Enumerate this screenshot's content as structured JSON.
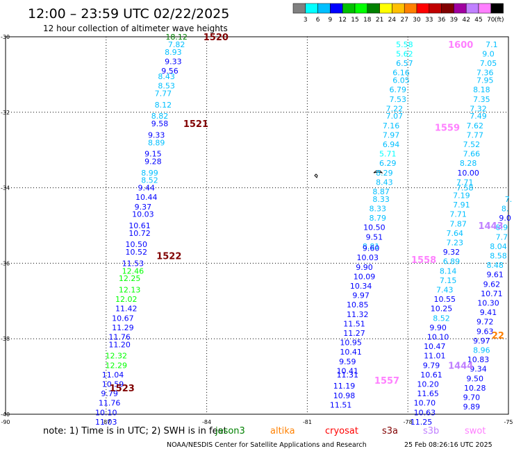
{
  "header": {
    "title": "12:00 – 23:59 UTC 02/22/2025",
    "subtitle": "12 hour collection of altimeter wave heights",
    "unit": "(ft)"
  },
  "legend_scale": {
    "labels": [
      "3",
      "6",
      "9",
      "12",
      "15",
      "18",
      "21",
      "24",
      "27",
      "30",
      "33",
      "36",
      "39",
      "42",
      "45",
      "70"
    ],
    "colors": [
      "#808080",
      "#00ffff",
      "#00bfff",
      "#0000ff",
      "#00c000",
      "#00ff00",
      "#008000",
      "#ffff00",
      "#ffc000",
      "#ff8000",
      "#ff0000",
      "#c00000",
      "#800000",
      "#a000a0",
      "#c080ff",
      "#ff80ff",
      "#000000"
    ]
  },
  "footer": {
    "note": "note:  1) Time is in UTC; 2) SWH is in feet",
    "satellites": [
      {
        "name": "jason3",
        "color": "#008000"
      },
      {
        "name": "altika",
        "color": "#ff8000"
      },
      {
        "name": "cryosat",
        "color": "#ff0000"
      },
      {
        "name": "s3a",
        "color": "#800000"
      },
      {
        "name": "s3b",
        "color": "#c080ff"
      },
      {
        "name": "swot",
        "color": "#ff80ff"
      }
    ],
    "credit": "NOAA/NESDIS Center for Satellite Applications and Research",
    "timestamp": "25 Feb 08:26:16 UTC 2025"
  },
  "chart_data": {
    "type": "scatter",
    "title": "12:00 – 23:59 UTC 02/22/2025",
    "subtitle": "12 hour collection of altimeter wave heights",
    "xlim": [
      -90,
      -75
    ],
    "ylim": [
      -40,
      -30
    ],
    "x_ticks": [
      "-90",
      "-87",
      "-84",
      "-81",
      "-78",
      "-75"
    ],
    "y_ticks": [
      "-30",
      "-32",
      "-34",
      "-36",
      "-38",
      "-40"
    ],
    "grid": true,
    "tracks": [
      {
        "time": "1520",
        "lon": -84.1,
        "lat": -30.0,
        "color": "#800000"
      },
      {
        "time": "1521",
        "lon": -84.7,
        "lat": -32.3,
        "color": "#800000"
      },
      {
        "time": "1522",
        "lon": -85.5,
        "lat": -35.8,
        "color": "#800000"
      },
      {
        "time": "1523",
        "lon": -86.9,
        "lat": -39.3,
        "color": "#800000"
      },
      {
        "time": "1600",
        "lon": -76.8,
        "lat": -30.2,
        "color": "#ff80ff"
      },
      {
        "time": "1559",
        "lon": -77.2,
        "lat": -32.4,
        "color": "#ff80ff"
      },
      {
        "time": "1558",
        "lon": -77.9,
        "lat": -35.9,
        "color": "#ff80ff"
      },
      {
        "time": "1557",
        "lon": -79.0,
        "lat": -39.1,
        "color": "#ff80ff"
      },
      {
        "time": "1443",
        "lon": -75.9,
        "lat": -35.0,
        "color": "#c080ff"
      },
      {
        "time": "1444",
        "lon": -76.8,
        "lat": -38.7,
        "color": "#c080ff"
      },
      {
        "time": "22",
        "lon": -75.5,
        "lat": -37.9,
        "color": "#ff8000"
      }
    ],
    "points": [
      {
        "lon": -84.9,
        "lat": -30.0,
        "v": "18.12",
        "c": "#008000"
      },
      {
        "lon": -84.9,
        "lat": -30.2,
        "v": "7.82",
        "c": "#00bfff"
      },
      {
        "lon": -85.0,
        "lat": -30.4,
        "v": "8.93",
        "c": "#00bfff"
      },
      {
        "lon": -85.0,
        "lat": -30.65,
        "v": "9.33",
        "c": "#0000ff"
      },
      {
        "lon": -85.1,
        "lat": -30.9,
        "v": "9.56",
        "c": "#0000ff"
      },
      {
        "lon": -85.2,
        "lat": -31.05,
        "v": "8.43",
        "c": "#00bfff"
      },
      {
        "lon": -85.2,
        "lat": -31.3,
        "v": "8.53",
        "c": "#00bfff"
      },
      {
        "lon": -85.3,
        "lat": -31.5,
        "v": "7.77",
        "c": "#00bfff"
      },
      {
        "lon": -85.3,
        "lat": -31.8,
        "v": "8.12",
        "c": "#00bfff"
      },
      {
        "lon": -85.4,
        "lat": -32.1,
        "v": "8.82",
        "c": "#00bfff"
      },
      {
        "lon": -85.4,
        "lat": -32.3,
        "v": "9.58",
        "c": "#0000ff"
      },
      {
        "lon": -85.5,
        "lat": -32.6,
        "v": "9.33",
        "c": "#0000ff"
      },
      {
        "lon": -85.5,
        "lat": -32.8,
        "v": "8.89",
        "c": "#00bfff"
      },
      {
        "lon": -85.6,
        "lat": -33.1,
        "v": "9.15",
        "c": "#0000ff"
      },
      {
        "lon": -85.6,
        "lat": -33.3,
        "v": "9.28",
        "c": "#0000ff"
      },
      {
        "lon": -85.7,
        "lat": -33.6,
        "v": "8.99",
        "c": "#00bfff"
      },
      {
        "lon": -85.7,
        "lat": -33.8,
        "v": "8.52",
        "c": "#00bfff"
      },
      {
        "lon": -85.8,
        "lat": -34.0,
        "v": "9.44",
        "c": "#0000ff"
      },
      {
        "lon": -85.8,
        "lat": -34.25,
        "v": "10.44",
        "c": "#0000ff"
      },
      {
        "lon": -85.9,
        "lat": -34.5,
        "v": "9.37",
        "c": "#0000ff"
      },
      {
        "lon": -85.9,
        "lat": -34.7,
        "v": "10.03",
        "c": "#0000ff"
      },
      {
        "lon": -86.0,
        "lat": -35.0,
        "v": "10.61",
        "c": "#0000ff"
      },
      {
        "lon": -86.0,
        "lat": -35.2,
        "v": "10.72",
        "c": "#0000ff"
      },
      {
        "lon": -86.1,
        "lat": -35.5,
        "v": "10.50",
        "c": "#0000ff"
      },
      {
        "lon": -86.1,
        "lat": -35.7,
        "v": "10.52",
        "c": "#0000ff"
      },
      {
        "lon": -86.2,
        "lat": -36.0,
        "v": "11.53",
        "c": "#0000ff"
      },
      {
        "lon": -86.2,
        "lat": -36.2,
        "v": "12.46",
        "c": "#00ff00"
      },
      {
        "lon": -86.3,
        "lat": -36.4,
        "v": "12.25",
        "c": "#00ff00"
      },
      {
        "lon": -86.3,
        "lat": -36.7,
        "v": "12.13",
        "c": "#00ff00"
      },
      {
        "lon": -86.4,
        "lat": -36.95,
        "v": "12.02",
        "c": "#00ff00"
      },
      {
        "lon": -86.4,
        "lat": -37.2,
        "v": "11.42",
        "c": "#0000ff"
      },
      {
        "lon": -86.5,
        "lat": -37.45,
        "v": "10.67",
        "c": "#0000ff"
      },
      {
        "lon": -86.5,
        "lat": -37.7,
        "v": "11.29",
        "c": "#0000ff"
      },
      {
        "lon": -86.6,
        "lat": -37.95,
        "v": "11.76",
        "c": "#0000ff"
      },
      {
        "lon": -86.6,
        "lat": -38.15,
        "v": "11.20",
        "c": "#0000ff"
      },
      {
        "lon": -86.7,
        "lat": -38.45,
        "v": "12.32",
        "c": "#00ff00"
      },
      {
        "lon": -86.7,
        "lat": -38.7,
        "v": "12.29",
        "c": "#00ff00"
      },
      {
        "lon": -86.8,
        "lat": -38.95,
        "v": "11.04",
        "c": "#0000ff"
      },
      {
        "lon": -86.8,
        "lat": -39.2,
        "v": "10.59",
        "c": "#0000ff"
      },
      {
        "lon": -86.9,
        "lat": -39.45,
        "v": "9.79",
        "c": "#0000ff"
      },
      {
        "lon": -86.9,
        "lat": -39.7,
        "v": "11.76",
        "c": "#0000ff"
      },
      {
        "lon": -87.0,
        "lat": -39.95,
        "v": "10.10",
        "c": "#0000ff"
      },
      {
        "lon": -87.0,
        "lat": -40.2,
        "v": "11.03",
        "c": "#0000ff"
      },
      {
        "lon": -78.1,
        "lat": -30.2,
        "v": "5.58",
        "c": "#00ffff"
      },
      {
        "lon": -78.1,
        "lat": -30.45,
        "v": "5.62",
        "c": "#00ffff"
      },
      {
        "lon": -78.1,
        "lat": -30.7,
        "v": "6.57",
        "c": "#00bfff"
      },
      {
        "lon": -78.2,
        "lat": -30.95,
        "v": "6.16",
        "c": "#00bfff"
      },
      {
        "lon": -78.2,
        "lat": -31.15,
        "v": "6.05",
        "c": "#00bfff"
      },
      {
        "lon": -78.3,
        "lat": -31.4,
        "v": "6.79",
        "c": "#00bfff"
      },
      {
        "lon": -78.3,
        "lat": -31.65,
        "v": "7.53",
        "c": "#00bfff"
      },
      {
        "lon": -78.4,
        "lat": -31.9,
        "v": "7.22",
        "c": "#00bfff"
      },
      {
        "lon": -78.4,
        "lat": -32.1,
        "v": "7.07",
        "c": "#00bfff"
      },
      {
        "lon": -78.5,
        "lat": -32.35,
        "v": "7.16",
        "c": "#00bfff"
      },
      {
        "lon": -78.5,
        "lat": -32.6,
        "v": "7.97",
        "c": "#00bfff"
      },
      {
        "lon": -78.5,
        "lat": -32.85,
        "v": "6.94",
        "c": "#00bfff"
      },
      {
        "lon": -78.6,
        "lat": -33.1,
        "v": "5.71",
        "c": "#00ffff"
      },
      {
        "lon": -78.6,
        "lat": -33.35,
        "v": "6.29",
        "c": "#00bfff"
      },
      {
        "lon": -78.7,
        "lat": -33.6,
        "v": "8.29",
        "c": "#00bfff"
      },
      {
        "lon": -78.7,
        "lat": -33.85,
        "v": "8.43",
        "c": "#00bfff"
      },
      {
        "lon": -78.8,
        "lat": -34.1,
        "v": "8.87",
        "c": "#00bfff"
      },
      {
        "lon": -78.8,
        "lat": -34.3,
        "v": "8.33",
        "c": "#00bfff"
      },
      {
        "lon": -78.9,
        "lat": -34.55,
        "v": "8.33",
        "c": "#00bfff"
      },
      {
        "lon": -78.9,
        "lat": -34.8,
        "v": "8.79",
        "c": "#00bfff"
      },
      {
        "lon": -79.0,
        "lat": -35.05,
        "v": "10.50",
        "c": "#0000ff"
      },
      {
        "lon": -79.0,
        "lat": -35.3,
        "v": "9.51",
        "c": "#0000ff"
      },
      {
        "lon": -79.1,
        "lat": -35.55,
        "v": "8.81",
        "c": "#00bfff"
      },
      {
        "lon": -79.1,
        "lat": -35.6,
        "v": "9.60",
        "c": "#0000ff"
      },
      {
        "lon": -79.2,
        "lat": -35.85,
        "v": "10.03",
        "c": "#0000ff"
      },
      {
        "lon": -79.3,
        "lat": -36.1,
        "v": "9.90",
        "c": "#0000ff"
      },
      {
        "lon": -79.3,
        "lat": -36.35,
        "v": "10.09",
        "c": "#0000ff"
      },
      {
        "lon": -79.4,
        "lat": -36.6,
        "v": "10.34",
        "c": "#0000ff"
      },
      {
        "lon": -79.4,
        "lat": -36.85,
        "v": "9.97",
        "c": "#0000ff"
      },
      {
        "lon": -79.5,
        "lat": -37.1,
        "v": "10.85",
        "c": "#0000ff"
      },
      {
        "lon": -79.5,
        "lat": -37.35,
        "v": "11.32",
        "c": "#0000ff"
      },
      {
        "lon": -79.6,
        "lat": -37.6,
        "v": "11.51",
        "c": "#0000ff"
      },
      {
        "lon": -79.6,
        "lat": -37.85,
        "v": "11.27",
        "c": "#0000ff"
      },
      {
        "lon": -79.7,
        "lat": -38.1,
        "v": "10.95",
        "c": "#0000ff"
      },
      {
        "lon": -79.7,
        "lat": -38.35,
        "v": "10.41",
        "c": "#0000ff"
      },
      {
        "lon": -79.8,
        "lat": -38.6,
        "v": "9.59",
        "c": "#0000ff"
      },
      {
        "lon": -79.8,
        "lat": -38.85,
        "v": "10.41",
        "c": "#0000ff"
      },
      {
        "lon": -79.8,
        "lat": -38.95,
        "v": "11.31",
        "c": "#0000ff"
      },
      {
        "lon": -79.9,
        "lat": -39.25,
        "v": "11.19",
        "c": "#0000ff"
      },
      {
        "lon": -79.9,
        "lat": -39.5,
        "v": "10.98",
        "c": "#0000ff"
      },
      {
        "lon": -80.0,
        "lat": -39.75,
        "v": "11.51",
        "c": "#0000ff"
      },
      {
        "lon": -75.5,
        "lat": -30.2,
        "v": "7.1",
        "c": "#00bfff"
      },
      {
        "lon": -75.6,
        "lat": -30.45,
        "v": "9.0",
        "c": "#00bfff"
      },
      {
        "lon": -75.6,
        "lat": -30.7,
        "v": "7.05",
        "c": "#00bfff"
      },
      {
        "lon": -75.7,
        "lat": -30.95,
        "v": "7.36",
        "c": "#00bfff"
      },
      {
        "lon": -75.7,
        "lat": -31.15,
        "v": "7.95",
        "c": "#00bfff"
      },
      {
        "lon": -75.8,
        "lat": -31.4,
        "v": "8.18",
        "c": "#00bfff"
      },
      {
        "lon": -75.8,
        "lat": -31.65,
        "v": "7.35",
        "c": "#00bfff"
      },
      {
        "lon": -75.9,
        "lat": -31.9,
        "v": "7.32",
        "c": "#00bfff"
      },
      {
        "lon": -75.9,
        "lat": -32.1,
        "v": "7.49",
        "c": "#00bfff"
      },
      {
        "lon": -76.0,
        "lat": -32.35,
        "v": "7.62",
        "c": "#00bfff"
      },
      {
        "lon": -76.0,
        "lat": -32.6,
        "v": "7.77",
        "c": "#00bfff"
      },
      {
        "lon": -76.1,
        "lat": -32.85,
        "v": "7.52",
        "c": "#00bfff"
      },
      {
        "lon": -76.1,
        "lat": -33.1,
        "v": "7.66",
        "c": "#00bfff"
      },
      {
        "lon": -76.2,
        "lat": -33.35,
        "v": "8.28",
        "c": "#00bfff"
      },
      {
        "lon": -76.2,
        "lat": -33.6,
        "v": "10.00",
        "c": "#0000ff"
      },
      {
        "lon": -76.3,
        "lat": -33.85,
        "v": "7.71",
        "c": "#00bfff"
      },
      {
        "lon": -76.3,
        "lat": -34.0,
        "v": "7.58",
        "c": "#00bfff"
      },
      {
        "lon": -76.4,
        "lat": -34.2,
        "v": "7.19",
        "c": "#00bfff"
      },
      {
        "lon": -76.4,
        "lat": -34.45,
        "v": "7.91",
        "c": "#00bfff"
      },
      {
        "lon": -76.5,
        "lat": -34.7,
        "v": "7.71",
        "c": "#00bfff"
      },
      {
        "lon": -76.5,
        "lat": -34.95,
        "v": "7.87",
        "c": "#00bfff"
      },
      {
        "lon": -76.6,
        "lat": -35.2,
        "v": "7.64",
        "c": "#00bfff"
      },
      {
        "lon": -76.6,
        "lat": -35.45,
        "v": "7.23",
        "c": "#00bfff"
      },
      {
        "lon": -76.7,
        "lat": -35.7,
        "v": "9.32",
        "c": "#0000ff"
      },
      {
        "lon": -76.7,
        "lat": -35.95,
        "v": "6.89",
        "c": "#00bfff"
      },
      {
        "lon": -76.8,
        "lat": -36.2,
        "v": "8.14",
        "c": "#00bfff"
      },
      {
        "lon": -76.8,
        "lat": -36.45,
        "v": "7.15",
        "c": "#00bfff"
      },
      {
        "lon": -76.9,
        "lat": -36.7,
        "v": "7.43",
        "c": "#00bfff"
      },
      {
        "lon": -76.9,
        "lat": -36.95,
        "v": "10.55",
        "c": "#0000ff"
      },
      {
        "lon": -77.0,
        "lat": -37.2,
        "v": "10.25",
        "c": "#0000ff"
      },
      {
        "lon": -77.0,
        "lat": -37.45,
        "v": "8.52",
        "c": "#00bfff"
      },
      {
        "lon": -77.1,
        "lat": -37.7,
        "v": "9.90",
        "c": "#0000ff"
      },
      {
        "lon": -77.1,
        "lat": -37.95,
        "v": "10.10",
        "c": "#0000ff"
      },
      {
        "lon": -77.2,
        "lat": -38.2,
        "v": "10.47",
        "c": "#0000ff"
      },
      {
        "lon": -77.2,
        "lat": -38.45,
        "v": "11.01",
        "c": "#0000ff"
      },
      {
        "lon": -77.3,
        "lat": -38.7,
        "v": "9.79",
        "c": "#0000ff"
      },
      {
        "lon": -77.3,
        "lat": -38.95,
        "v": "10.61",
        "c": "#0000ff"
      },
      {
        "lon": -77.4,
        "lat": -39.2,
        "v": "10.20",
        "c": "#0000ff"
      },
      {
        "lon": -77.4,
        "lat": -39.45,
        "v": "11.65",
        "c": "#0000ff"
      },
      {
        "lon": -77.5,
        "lat": -39.7,
        "v": "10.70",
        "c": "#0000ff"
      },
      {
        "lon": -77.5,
        "lat": -39.95,
        "v": "10.63",
        "c": "#0000ff"
      },
      {
        "lon": -77.6,
        "lat": -40.2,
        "v": "11.25",
        "c": "#0000ff"
      },
      {
        "lon": -75.0,
        "lat": -34.3,
        "v": "7.",
        "c": "#00bfff"
      },
      {
        "lon": -75.1,
        "lat": -34.55,
        "v": "8.",
        "c": "#00bfff"
      },
      {
        "lon": -75.1,
        "lat": -34.8,
        "v": "9.0",
        "c": "#0000ff"
      },
      {
        "lon": -75.2,
        "lat": -35.05,
        "v": "8.9",
        "c": "#00bfff"
      },
      {
        "lon": -75.2,
        "lat": -35.3,
        "v": "7.7",
        "c": "#00bfff"
      },
      {
        "lon": -75.3,
        "lat": -35.55,
        "v": "8.04",
        "c": "#00bfff"
      },
      {
        "lon": -75.3,
        "lat": -35.8,
        "v": "8.58",
        "c": "#00bfff"
      },
      {
        "lon": -75.4,
        "lat": -36.05,
        "v": "8.48",
        "c": "#00bfff"
      },
      {
        "lon": -75.4,
        "lat": -36.3,
        "v": "9.61",
        "c": "#0000ff"
      },
      {
        "lon": -75.5,
        "lat": -36.55,
        "v": "9.62",
        "c": "#0000ff"
      },
      {
        "lon": -75.5,
        "lat": -36.8,
        "v": "10.71",
        "c": "#0000ff"
      },
      {
        "lon": -75.6,
        "lat": -37.05,
        "v": "10.30",
        "c": "#0000ff"
      },
      {
        "lon": -75.6,
        "lat": -37.3,
        "v": "9.41",
        "c": "#0000ff"
      },
      {
        "lon": -75.7,
        "lat": -37.55,
        "v": "9.72",
        "c": "#0000ff"
      },
      {
        "lon": -75.7,
        "lat": -37.8,
        "v": "9.63",
        "c": "#0000ff"
      },
      {
        "lon": -75.8,
        "lat": -38.05,
        "v": "9.97",
        "c": "#0000ff"
      },
      {
        "lon": -75.8,
        "lat": -38.3,
        "v": "8.96",
        "c": "#00bfff"
      },
      {
        "lon": -75.9,
        "lat": -38.55,
        "v": "10.83",
        "c": "#0000ff"
      },
      {
        "lon": -75.9,
        "lat": -38.8,
        "v": "9.34",
        "c": "#0000ff"
      },
      {
        "lon": -76.0,
        "lat": -39.05,
        "v": "9.50",
        "c": "#0000ff"
      },
      {
        "lon": -76.0,
        "lat": -39.3,
        "v": "10.28",
        "c": "#0000ff"
      },
      {
        "lon": -76.1,
        "lat": -39.55,
        "v": "9.70",
        "c": "#0000ff"
      },
      {
        "lon": -76.1,
        "lat": -39.8,
        "v": "9.89",
        "c": "#0000ff"
      }
    ]
  }
}
